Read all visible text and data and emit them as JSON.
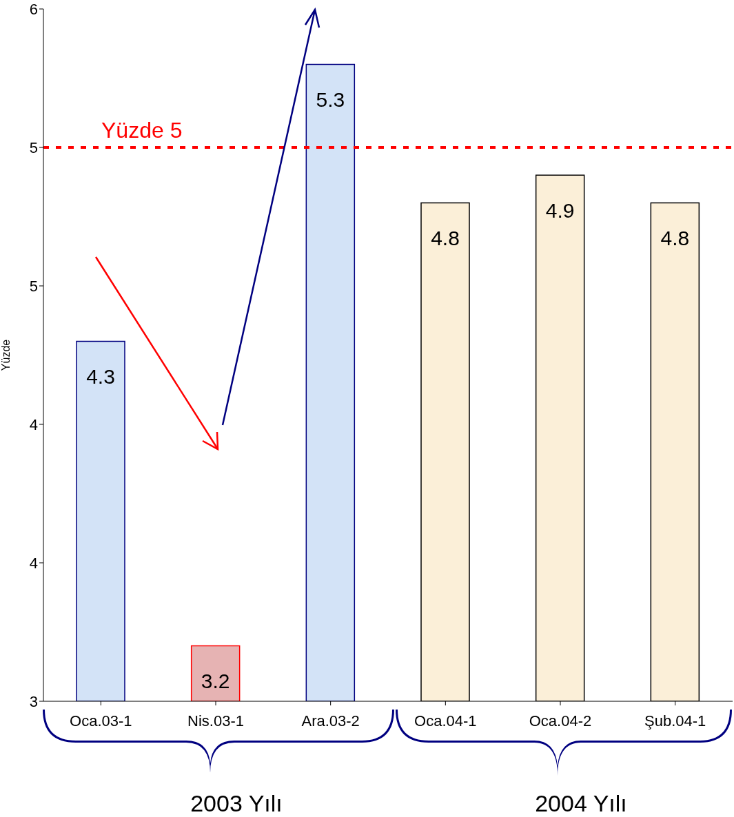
{
  "chart_data": {
    "type": "bar",
    "ylabel": "Yüzde",
    "categories": [
      "Oca.03-1",
      "Nis.03-1",
      "Ara.03-2",
      "Oca.04-1",
      "Oca.04-2",
      "Şub.04-1"
    ],
    "values": [
      4.3,
      3.2,
      5.3,
      4.8,
      4.9,
      4.8
    ],
    "colors": [
      "#d3e3f7",
      "#e6b3b3",
      "#d3e3f7",
      "#fbefd8",
      "#fbefd8",
      "#fbefd8"
    ],
    "ylim": [
      3,
      5.5
    ],
    "yticks": [
      {
        "value": 3,
        "label": "3"
      },
      {
        "value": 3.5,
        "label": "4"
      },
      {
        "value": 4,
        "label": "4"
      },
      {
        "value": 4.5,
        "label": "5"
      },
      {
        "value": 5,
        "label": "5"
      },
      {
        "value": 5.5,
        "label": "6"
      }
    ],
    "data_labels": true,
    "ref_lines": [
      {
        "axis": "y",
        "value": 5,
        "label": "Yüzde 5",
        "color": "#ff0000",
        "line_style": "dashed"
      }
    ],
    "annotations": [
      "2003 Yılı",
      "2004 Yılı"
    ]
  }
}
